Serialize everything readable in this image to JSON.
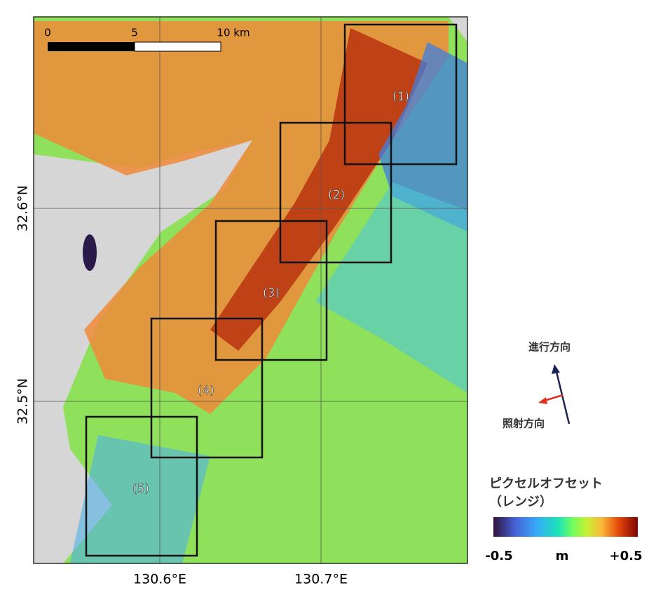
{
  "map": {
    "scale_bar": {
      "labels": [
        "0",
        "5",
        "10 km"
      ]
    },
    "regions": [
      "(1)",
      "(2)",
      "(3)",
      "(4)",
      "(5)"
    ],
    "lat_labels": [
      "32.6°N",
      "32.5°N"
    ],
    "lon_labels": [
      "130.6°E",
      "130.7°E"
    ]
  },
  "direction": {
    "flight": "進行方向",
    "look": "照射方向"
  },
  "colorbar": {
    "title": "ピクセルオフセット",
    "subtitle": "（レンジ）",
    "min_label": "-0.5",
    "unit": "m",
    "max_label": "+0.5"
  }
}
